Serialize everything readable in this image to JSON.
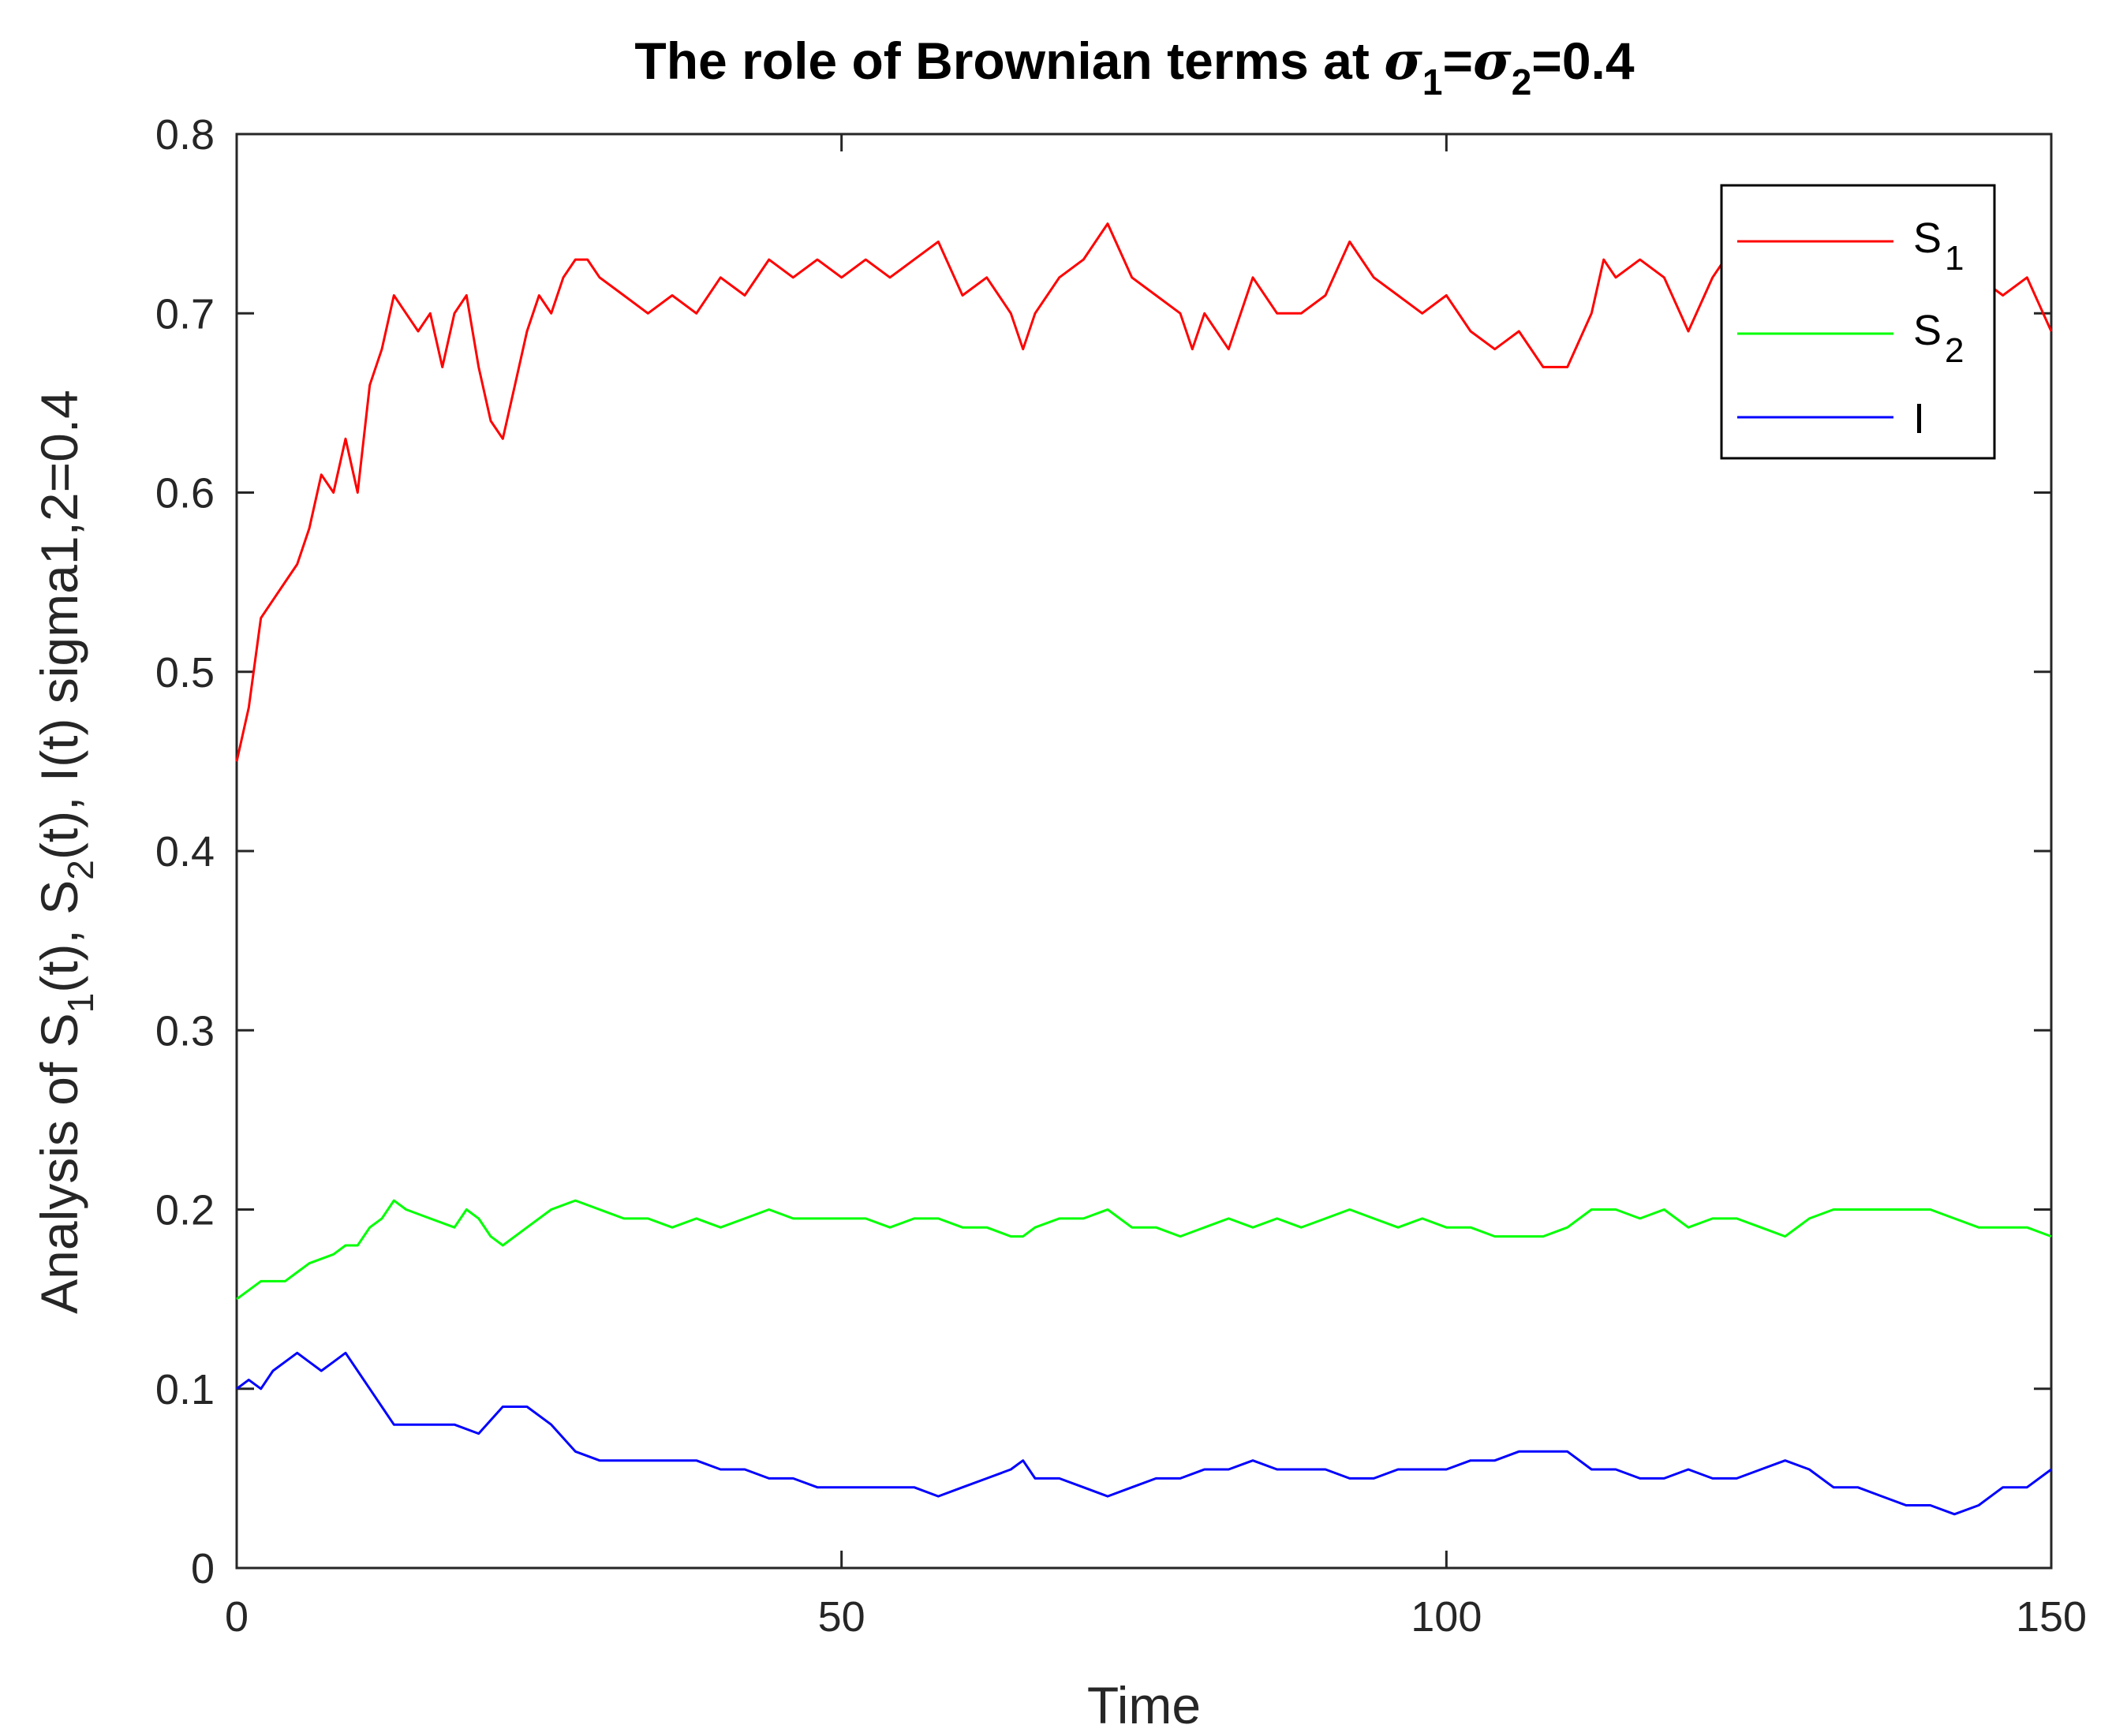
{
  "chart_data": {
    "type": "line",
    "title_prefix": "The role of Brownian terms at ",
    "title_sym": "σ",
    "title_sub1": "1",
    "title_eq": "=",
    "title_sub2": "2",
    "title_suffix": "=0.4",
    "xlabel": "Time",
    "ylabel_p1": "Analysis of S",
    "ylabel_s1": "1",
    "ylabel_p2": "(t), S",
    "ylabel_s2": "2",
    "ylabel_p3": "(t), I(t) sigma1,2=0.4",
    "xlim": [
      0,
      150
    ],
    "ylim": [
      0,
      0.8
    ],
    "xticks": [
      0,
      50,
      100,
      150
    ],
    "xtick_labels": [
      "0",
      "50",
      "100",
      "150"
    ],
    "yticks": [
      0,
      0.1,
      0.2,
      0.3,
      0.4,
      0.5,
      0.6,
      0.7,
      0.8
    ],
    "ytick_labels": [
      "0",
      "0.1",
      "0.2",
      "0.3",
      "0.4",
      "0.5",
      "0.6",
      "0.7",
      "0.8"
    ],
    "legend_position": "top-right",
    "grid": false,
    "series": [
      {
        "name": "S",
        "name_sub": "1",
        "color": "#ff0000",
        "x": [
          0,
          1,
          2,
          3,
          4,
          5,
          6,
          7,
          8,
          9,
          10,
          11,
          12,
          13,
          14,
          15,
          16,
          17,
          18,
          19,
          20,
          21,
          22,
          23,
          24,
          25,
          26,
          27,
          28,
          29,
          30,
          32,
          34,
          36,
          38,
          40,
          42,
          44,
          46,
          48,
          50,
          52,
          54,
          56,
          58,
          60,
          62,
          64,
          65,
          66,
          68,
          70,
          72,
          74,
          76,
          78,
          79,
          80,
          82,
          84,
          86,
          88,
          90,
          92,
          94,
          96,
          98,
          100,
          102,
          104,
          106,
          108,
          110,
          112,
          113,
          114,
          116,
          118,
          120,
          122,
          124,
          126,
          128,
          130,
          132,
          134,
          136,
          138,
          140,
          142,
          144,
          146,
          148,
          150
        ],
        "y": [
          0.45,
          0.48,
          0.53,
          0.54,
          0.55,
          0.56,
          0.58,
          0.61,
          0.6,
          0.63,
          0.6,
          0.66,
          0.68,
          0.71,
          0.7,
          0.69,
          0.7,
          0.67,
          0.7,
          0.71,
          0.67,
          0.64,
          0.63,
          0.66,
          0.69,
          0.71,
          0.7,
          0.72,
          0.73,
          0.73,
          0.72,
          0.71,
          0.7,
          0.71,
          0.7,
          0.72,
          0.71,
          0.73,
          0.72,
          0.73,
          0.72,
          0.73,
          0.72,
          0.73,
          0.74,
          0.71,
          0.72,
          0.7,
          0.68,
          0.7,
          0.72,
          0.73,
          0.75,
          0.72,
          0.71,
          0.7,
          0.68,
          0.7,
          0.68,
          0.72,
          0.7,
          0.7,
          0.71,
          0.74,
          0.72,
          0.71,
          0.7,
          0.71,
          0.69,
          0.68,
          0.69,
          0.67,
          0.67,
          0.7,
          0.73,
          0.72,
          0.73,
          0.72,
          0.69,
          0.72,
          0.74,
          0.72,
          0.71,
          0.72,
          0.73,
          0.74,
          0.72,
          0.71,
          0.71,
          0.72,
          0.72,
          0.71,
          0.72,
          0.69
        ]
      },
      {
        "name": "S",
        "name_sub": "2",
        "color": "#00ff00",
        "x": [
          0,
          1,
          2,
          4,
          5,
          6,
          8,
          9,
          10,
          11,
          12,
          13,
          14,
          16,
          18,
          19,
          20,
          21,
          22,
          24,
          26,
          28,
          30,
          32,
          34,
          36,
          38,
          40,
          42,
          44,
          46,
          48,
          50,
          52,
          54,
          56,
          58,
          60,
          62,
          64,
          65,
          66,
          68,
          70,
          72,
          74,
          76,
          78,
          80,
          82,
          84,
          86,
          88,
          90,
          92,
          94,
          96,
          98,
          100,
          102,
          104,
          106,
          108,
          110,
          112,
          114,
          116,
          118,
          120,
          122,
          124,
          126,
          128,
          130,
          132,
          134,
          136,
          138,
          140,
          142,
          144,
          146,
          148,
          150
        ],
        "y": [
          0.15,
          0.155,
          0.16,
          0.16,
          0.165,
          0.17,
          0.175,
          0.18,
          0.18,
          0.19,
          0.195,
          0.205,
          0.2,
          0.195,
          0.19,
          0.2,
          0.195,
          0.185,
          0.18,
          0.19,
          0.2,
          0.205,
          0.2,
          0.195,
          0.195,
          0.19,
          0.195,
          0.19,
          0.195,
          0.2,
          0.195,
          0.195,
          0.195,
          0.195,
          0.19,
          0.195,
          0.195,
          0.19,
          0.19,
          0.185,
          0.185,
          0.19,
          0.195,
          0.195,
          0.2,
          0.19,
          0.19,
          0.185,
          0.19,
          0.195,
          0.19,
          0.195,
          0.19,
          0.195,
          0.2,
          0.195,
          0.19,
          0.195,
          0.19,
          0.19,
          0.185,
          0.185,
          0.185,
          0.19,
          0.2,
          0.2,
          0.195,
          0.2,
          0.19,
          0.195,
          0.195,
          0.19,
          0.185,
          0.195,
          0.2,
          0.2,
          0.2,
          0.2,
          0.2,
          0.195,
          0.19,
          0.19,
          0.19,
          0.185
        ]
      },
      {
        "name": "I",
        "name_sub": "",
        "color": "#0000ff",
        "x": [
          0,
          1,
          2,
          3,
          4,
          5,
          6,
          7,
          8,
          9,
          10,
          11,
          12,
          13,
          14,
          16,
          18,
          20,
          22,
          24,
          26,
          28,
          30,
          32,
          34,
          36,
          38,
          40,
          42,
          44,
          46,
          48,
          50,
          52,
          54,
          56,
          58,
          60,
          62,
          64,
          65,
          66,
          68,
          70,
          72,
          74,
          76,
          78,
          80,
          82,
          84,
          86,
          88,
          90,
          92,
          94,
          96,
          98,
          100,
          102,
          104,
          106,
          108,
          110,
          112,
          114,
          116,
          118,
          120,
          122,
          124,
          126,
          128,
          130,
          132,
          134,
          136,
          138,
          140,
          142,
          144,
          146,
          148,
          150
        ],
        "y": [
          0.1,
          0.105,
          0.1,
          0.11,
          0.115,
          0.12,
          0.115,
          0.11,
          0.115,
          0.12,
          0.11,
          0.1,
          0.09,
          0.08,
          0.08,
          0.08,
          0.08,
          0.075,
          0.09,
          0.09,
          0.08,
          0.065,
          0.06,
          0.06,
          0.06,
          0.06,
          0.06,
          0.055,
          0.055,
          0.05,
          0.05,
          0.045,
          0.045,
          0.045,
          0.045,
          0.045,
          0.04,
          0.045,
          0.05,
          0.055,
          0.06,
          0.05,
          0.05,
          0.045,
          0.04,
          0.045,
          0.05,
          0.05,
          0.055,
          0.055,
          0.06,
          0.055,
          0.055,
          0.055,
          0.05,
          0.05,
          0.055,
          0.055,
          0.055,
          0.06,
          0.06,
          0.065,
          0.065,
          0.065,
          0.055,
          0.055,
          0.05,
          0.05,
          0.055,
          0.05,
          0.05,
          0.055,
          0.06,
          0.055,
          0.045,
          0.045,
          0.04,
          0.035,
          0.035,
          0.03,
          0.035,
          0.045,
          0.045,
          0.055
        ]
      }
    ]
  }
}
